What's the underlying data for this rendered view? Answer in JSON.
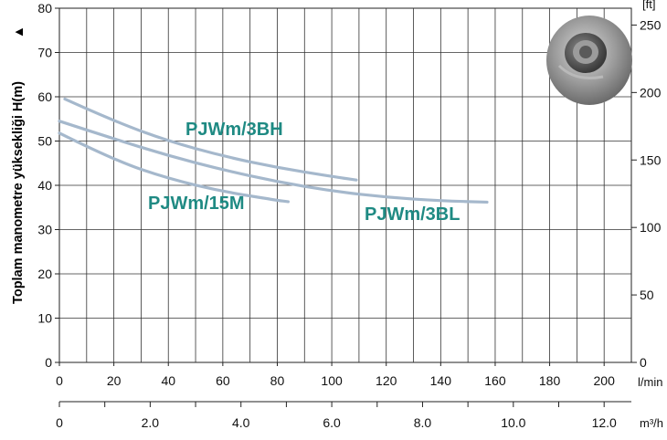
{
  "chart_data": {
    "type": "line",
    "ylabel": "Toplam manometre yüksekliği  H(m)",
    "ylabel_arrow": "▲",
    "xlim": [
      0,
      210
    ],
    "ylim": [
      0,
      80
    ],
    "x_ticks": [
      "0",
      "20",
      "40",
      "60",
      "80",
      "100",
      "120",
      "140",
      "160",
      "180",
      "200"
    ],
    "x_unit": "l/min",
    "y_ticks": [
      "0",
      "10",
      "20",
      "30",
      "40",
      "50",
      "60",
      "70",
      "80"
    ],
    "x2_ticks": [
      "0",
      "2.0",
      "4.0",
      "6.0",
      "8.0",
      "10.0",
      "12.0"
    ],
    "x2_unit": "m³/h",
    "y2_ticks": [
      "0",
      "50",
      "100",
      "150",
      "200",
      "250"
    ],
    "y2_unit": "[ft]",
    "grid": true,
    "series": [
      {
        "name": "PJWm/3BH",
        "color": "#a5b8cc",
        "x": [
          2,
          20,
          40,
          60,
          80,
          100,
          109
        ],
        "y": [
          59.5,
          54.5,
          50,
          46.6,
          44,
          42,
          41.2
        ]
      },
      {
        "name": "PJWm/3BL",
        "color": "#a5b8cc",
        "x": [
          0,
          20,
          40,
          60,
          80,
          100,
          120,
          140,
          157
        ],
        "y": [
          54.5,
          50.5,
          46.7,
          43.5,
          40.8,
          38.7,
          37.3,
          36.5,
          36.2
        ]
      },
      {
        "name": "PJWm/15M",
        "color": "#a5b8cc",
        "x": [
          0,
          20,
          40,
          60,
          80,
          84
        ],
        "y": [
          51.8,
          45.7,
          41.5,
          38.6,
          36.6,
          36.3
        ]
      }
    ]
  }
}
